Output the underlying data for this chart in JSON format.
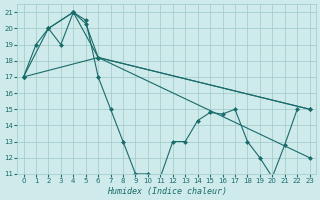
{
  "xlabel": "Humidex (Indice chaleur)",
  "xlim": [
    -0.5,
    23.5
  ],
  "ylim": [
    11,
    21.5
  ],
  "yticks": [
    11,
    12,
    13,
    14,
    15,
    16,
    17,
    18,
    19,
    20,
    21
  ],
  "xticks": [
    0,
    1,
    2,
    3,
    4,
    5,
    6,
    7,
    8,
    9,
    10,
    11,
    12,
    13,
    14,
    15,
    16,
    17,
    18,
    19,
    20,
    21,
    22,
    23
  ],
  "background_color": "#ceeaea",
  "grid_color": "#a0c8c8",
  "line_color": "#1a6b6b",
  "line1_x": [
    0,
    1,
    2,
    3,
    4,
    5,
    6,
    7,
    8,
    9,
    10,
    11,
    12,
    13,
    14,
    15,
    16,
    17,
    18,
    19,
    20,
    21,
    22
  ],
  "line1_y": [
    17,
    19,
    20,
    19,
    21,
    20.5,
    17,
    15,
    13,
    11,
    11,
    10.8,
    13,
    13,
    14.3,
    14.8,
    14.7,
    15,
    13,
    12,
    10.8,
    12.8,
    15
  ],
  "line2_x": [
    0,
    2,
    4,
    6,
    23
  ],
  "line2_y": [
    17,
    20,
    21,
    18.2,
    15
  ],
  "line3_x": [
    0,
    6,
    23
  ],
  "line3_y": [
    17,
    18.2,
    12
  ],
  "line4_x": [
    2,
    4,
    5,
    6,
    23
  ],
  "line4_y": [
    20,
    21,
    20.3,
    18.2,
    15
  ]
}
